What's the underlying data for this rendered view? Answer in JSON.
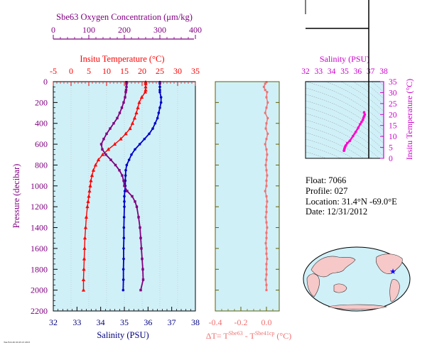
{
  "colors": {
    "oxygen": "#800080",
    "temperature": "#ff0000",
    "salinity": "#0000cc",
    "delta": "#f07070",
    "panel_bg": "#d0f0f8",
    "axis_olive": "#606000",
    "magenta": "#ff00cc",
    "ts_axis": "#cc00cc",
    "land": "#f7c8c8",
    "star": "#0000ff"
  },
  "chart_data": [
    {
      "type": "line",
      "title": "",
      "ylabel": "Pressure (decibar)",
      "ylim": [
        2200,
        0
      ],
      "yticks": [
        0,
        200,
        400,
        600,
        800,
        1000,
        1200,
        1400,
        1600,
        1800,
        2000,
        2200
      ],
      "x_axes": [
        {
          "label": "Sbe63 Oxygen Concentration (μm/kg)",
          "range": [
            0,
            400
          ],
          "ticks": [
            0,
            100,
            200,
            300,
            400
          ],
          "series": "oxygen"
        },
        {
          "label": "Insitu Temperature (°C)",
          "range": [
            -5,
            35
          ],
          "ticks": [
            -5,
            0,
            5,
            10,
            15,
            20,
            25,
            30,
            35
          ],
          "series": "temperature"
        },
        {
          "label": "Salinity (PSU)",
          "range": [
            32,
            38
          ],
          "ticks": [
            32,
            33,
            34,
            35,
            36,
            37,
            38
          ],
          "series": "salinity"
        }
      ],
      "series": [
        {
          "key": "temperature",
          "marker": "triangle",
          "pressure": [
            5,
            20,
            50,
            80,
            100,
            150,
            200,
            250,
            300,
            350,
            400,
            450,
            500,
            550,
            600,
            650,
            700,
            750,
            800,
            850,
            900,
            950,
            1000,
            1050,
            1100,
            1150,
            1200,
            1300,
            1400,
            1500,
            1600,
            1700,
            1800,
            1900,
            2000
          ],
          "values": [
            21.0,
            21.0,
            21.0,
            21.0,
            20.9,
            19.9,
            19.2,
            18.8,
            18.4,
            17.9,
            17.3,
            16.6,
            15.4,
            14.0,
            12.3,
            10.5,
            8.9,
            7.7,
            6.9,
            6.3,
            5.9,
            5.6,
            5.4,
            5.2,
            5.0,
            4.8,
            4.6,
            4.3,
            4.1,
            3.9,
            3.8,
            3.7,
            3.6,
            3.5,
            3.5
          ]
        },
        {
          "key": "salinity",
          "marker": "circle",
          "pressure": [
            5,
            20,
            50,
            80,
            100,
            150,
            200,
            250,
            300,
            350,
            400,
            450,
            500,
            550,
            600,
            650,
            700,
            750,
            800,
            850,
            900,
            950,
            1000,
            1050,
            1100,
            1150,
            1200,
            1300,
            1400,
            1500,
            1600,
            1700,
            1800,
            1900,
            2000
          ],
          "values": [
            36.5,
            36.5,
            36.5,
            36.5,
            36.5,
            36.55,
            36.55,
            36.5,
            36.45,
            36.4,
            36.3,
            36.2,
            36.05,
            35.85,
            35.65,
            35.45,
            35.3,
            35.2,
            35.1,
            35.06,
            35.05,
            35.04,
            35.04,
            35.02,
            35.0,
            35.0,
            35.0,
            34.99,
            34.98,
            34.98,
            34.97,
            34.97,
            34.96,
            34.96,
            34.95
          ]
        },
        {
          "key": "oxygen",
          "marker": "square",
          "pressure": [
            5,
            20,
            50,
            80,
            100,
            150,
            200,
            250,
            300,
            350,
            400,
            450,
            500,
            550,
            600,
            650,
            700,
            750,
            800,
            850,
            900,
            950,
            1000,
            1050,
            1100,
            1150,
            1200,
            1300,
            1400,
            1500,
            1600,
            1700,
            1800,
            1900,
            2000
          ],
          "values": [
            206,
            206,
            206,
            205,
            204,
            202,
            198,
            193,
            187,
            180,
            170,
            160,
            150,
            142,
            135,
            138,
            148,
            162,
            175,
            186,
            194,
            198,
            200,
            208,
            222,
            230,
            235,
            240,
            244,
            246,
            248,
            250,
            252,
            253,
            246
          ]
        }
      ]
    },
    {
      "type": "line",
      "title": "",
      "xlabel": "ΔT= TSbe63 - TSbe41cp (°C)",
      "xlim": [
        -0.4,
        0.1
      ],
      "xticks": [
        -0.4,
        -0.2,
        0.0
      ],
      "ylim": [
        2200,
        0
      ],
      "series": [
        {
          "key": "delta",
          "pressure": [
            5,
            20,
            50,
            80,
            100,
            150,
            200,
            250,
            300,
            350,
            400,
            450,
            500,
            550,
            600,
            650,
            700,
            750,
            800,
            850,
            900,
            950,
            1000,
            1050,
            1100,
            1150,
            1200,
            1250,
            1300,
            1350,
            1400,
            1450,
            1500,
            1550,
            1600,
            1650,
            1700,
            1750,
            1800,
            1850,
            1900,
            1950,
            2000
          ],
          "values": [
            0.0,
            -0.01,
            -0.02,
            -0.01,
            0.005,
            0.0,
            0.01,
            0.0,
            -0.01,
            0.01,
            0.0,
            -0.005,
            0.01,
            0.0,
            -0.01,
            0.0,
            0.005,
            0.0,
            -0.005,
            0.0,
            0.005,
            0.0,
            0.0,
            -0.01,
            0.0,
            0.005,
            0.0,
            0.0,
            -0.005,
            0.0,
            0.005,
            0.0,
            0.0,
            -0.005,
            0.0,
            0.0,
            0.005,
            0.0,
            0.0,
            0.0,
            -0.005,
            0.0,
            0.0
          ]
        }
      ]
    },
    {
      "type": "scatter",
      "title": "",
      "xlabel": "Salinity (PSU)",
      "ylabel": "Insitu Temperature (°C)",
      "xlim": [
        32,
        38
      ],
      "ylim": [
        0,
        35
      ],
      "xticks": [
        32,
        33,
        34,
        35,
        36,
        37,
        38
      ],
      "yticks": [
        0,
        5,
        10,
        15,
        20,
        25,
        30,
        35
      ],
      "series": [
        {
          "key": "ts",
          "x": [
            34.95,
            34.98,
            35.0,
            35.05,
            35.1,
            35.2,
            35.4,
            35.65,
            35.85,
            36.05,
            36.2,
            36.3,
            36.4,
            36.45,
            36.5,
            36.55,
            36.5
          ],
          "y": [
            3.5,
            4.1,
            4.6,
            5.4,
            5.9,
            6.9,
            8.0,
            10.2,
            12.0,
            14.0,
            15.6,
            16.6,
            17.6,
            18.5,
            19.2,
            20.0,
            21.0
          ]
        }
      ]
    }
  ],
  "left_panel": {
    "oxygen_title": "Sbe63 Oxygen Concentration (μm/kg)",
    "oxygen_ticks": [
      "0",
      "100",
      "200",
      "300",
      "400"
    ],
    "temp_title": "Insitu Temperature (°C)",
    "temp_ticks": [
      "-5",
      "0",
      "5",
      "10",
      "15",
      "20",
      "25",
      "30",
      "35"
    ],
    "sal_title": "Salinity (PSU)",
    "sal_ticks": [
      "32",
      "33",
      "34",
      "35",
      "36",
      "37",
      "38"
    ],
    "pressure_title": "Pressure (decibar)",
    "pressure_ticks": [
      "0",
      "200",
      "400",
      "600",
      "800",
      "1000",
      "1200",
      "1400",
      "1600",
      "1800",
      "2000",
      "2200"
    ]
  },
  "delta_panel": {
    "ticks": [
      "-0.4",
      "-0.2",
      "0.0"
    ],
    "label_main": "ΔT= T",
    "label_sup1": "Sbe63",
    "label_mid": " - T",
    "label_sup2": "Sbe41cp",
    "label_end": " (°C)"
  },
  "ts_panel": {
    "sal_title": "Salinity (PSU)",
    "sal_ticks": [
      "32",
      "33",
      "34",
      "35",
      "36",
      "37",
      "38"
    ],
    "temp_title": "Insitu Temperature (°C)",
    "temp_ticks": [
      "0",
      "5",
      "10",
      "15",
      "20",
      "25",
      "30",
      "35"
    ]
  },
  "info": {
    "float": "Float:  7066",
    "profile": "Profile:  027",
    "location": "Location:  31.4°N  -69.0°E",
    "date": "Date:  12/31/2012"
  },
  "footer": {
    "tiny_text": "Tue Feb 26 10:45:13 2013"
  }
}
